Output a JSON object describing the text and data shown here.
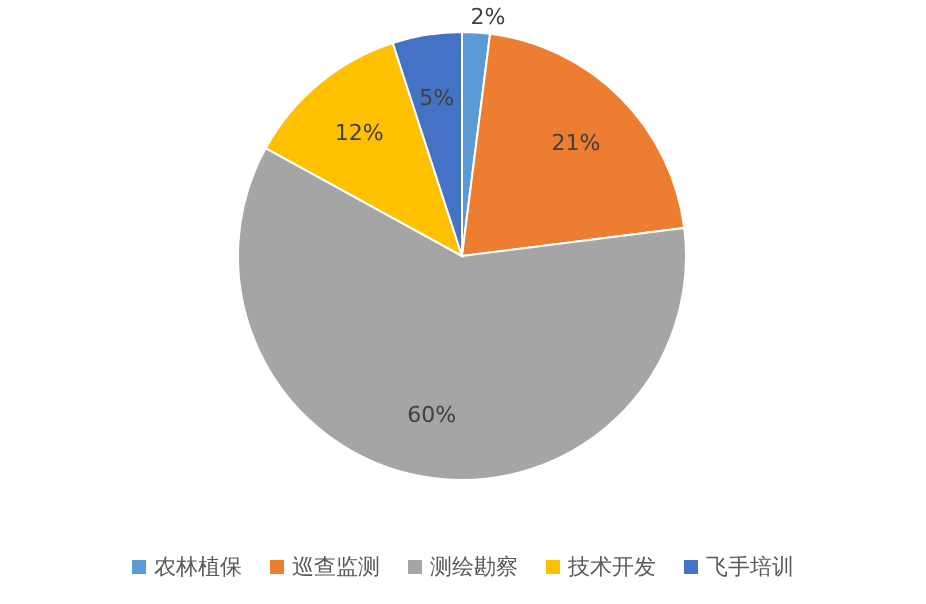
{
  "chart_data": {
    "type": "pie",
    "categories": [
      "农林植保",
      "巡查监测",
      "测绘勘察",
      "技术开发",
      "飞手培训"
    ],
    "values": [
      2,
      21,
      60,
      12,
      5
    ],
    "colors": [
      "#5b9bd5",
      "#ed7d31",
      "#a5a5a5",
      "#ffc000",
      "#4472c4"
    ],
    "value_labels": [
      "2%",
      "21%",
      "60%",
      "12%",
      "5%"
    ],
    "legend": "bottom"
  }
}
